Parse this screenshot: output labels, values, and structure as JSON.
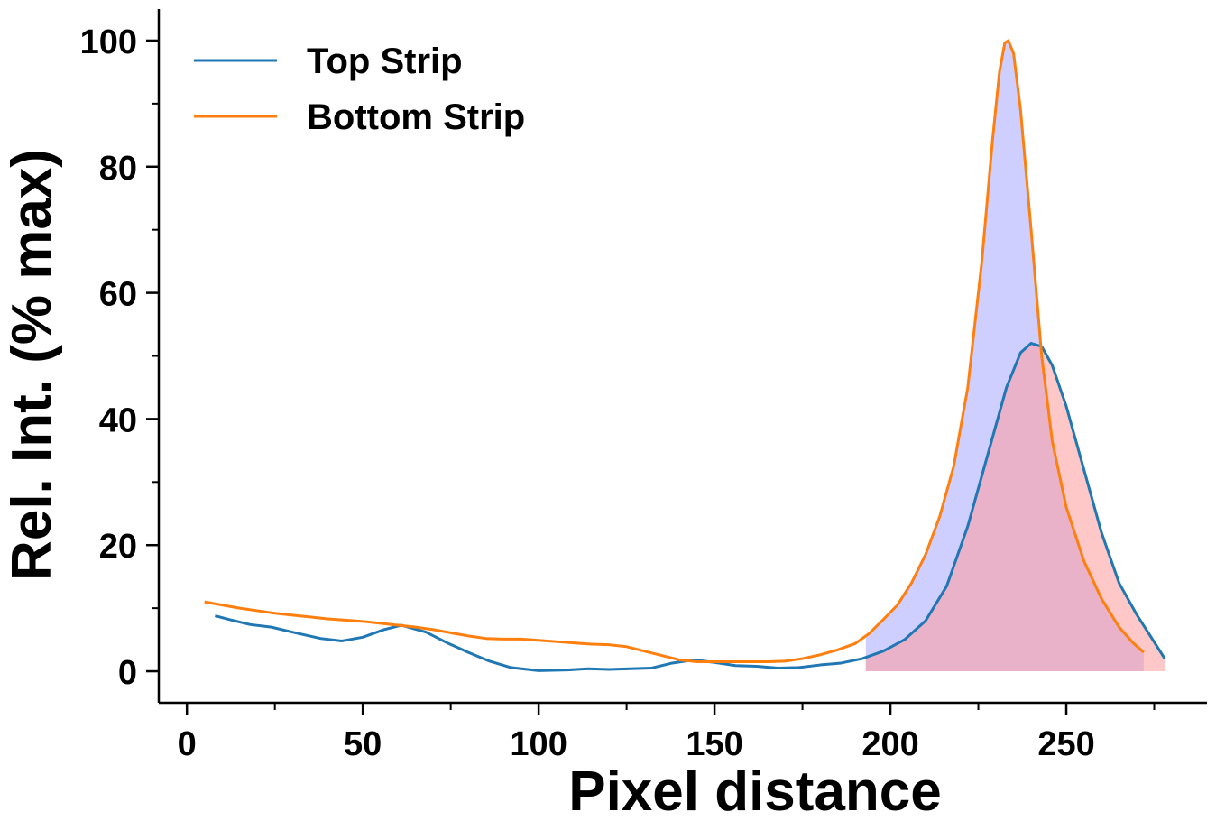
{
  "chart_data": {
    "type": "line",
    "xlabel": "Pixel distance",
    "ylabel": "Rel. Int. (% max)",
    "xlim": [
      -8,
      290
    ],
    "ylim": [
      -5,
      105
    ],
    "x_ticks": [
      0,
      50,
      100,
      150,
      200,
      250
    ],
    "y_ticks": [
      0,
      20,
      40,
      60,
      80,
      100
    ],
    "x_minor_step": 25,
    "y_minor_step": 10,
    "grid": false,
    "legend": "upper-left",
    "series": [
      {
        "name": "Top Strip",
        "color": "#1f77b4",
        "points": [
          [
            8,
            8.8
          ],
          [
            12,
            8.2
          ],
          [
            18,
            7.4
          ],
          [
            24,
            7.0
          ],
          [
            30,
            6.2
          ],
          [
            38,
            5.2
          ],
          [
            44,
            4.8
          ],
          [
            50,
            5.4
          ],
          [
            56,
            6.6
          ],
          [
            61,
            7.3
          ],
          [
            68,
            6.2
          ],
          [
            74,
            4.5
          ],
          [
            80,
            3.0
          ],
          [
            86,
            1.6
          ],
          [
            92,
            0.6
          ],
          [
            100,
            0.1
          ],
          [
            108,
            0.2
          ],
          [
            114,
            0.4
          ],
          [
            120,
            0.3
          ],
          [
            126,
            0.4
          ],
          [
            132,
            0.5
          ],
          [
            138,
            1.3
          ],
          [
            144,
            1.8
          ],
          [
            150,
            1.4
          ],
          [
            156,
            0.9
          ],
          [
            162,
            0.8
          ],
          [
            168,
            0.5
          ],
          [
            174,
            0.6
          ],
          [
            180,
            1.0
          ],
          [
            186,
            1.3
          ],
          [
            192,
            2.0
          ],
          [
            198,
            3.2
          ],
          [
            204,
            5.0
          ],
          [
            210,
            8.0
          ],
          [
            216,
            13.5
          ],
          [
            222,
            23.0
          ],
          [
            228,
            35.0
          ],
          [
            233,
            45.0
          ],
          [
            237,
            50.5
          ],
          [
            240,
            52.0
          ],
          [
            243,
            51.5
          ],
          [
            246,
            48.5
          ],
          [
            250,
            42.0
          ],
          [
            255,
            32.0
          ],
          [
            260,
            22.0
          ],
          [
            265,
            14.0
          ],
          [
            270,
            9.0
          ],
          [
            274,
            5.5
          ],
          [
            278,
            2.0
          ]
        ],
        "fill": {
          "from": 193,
          "to": 278,
          "color": "#ff9a9a"
        }
      },
      {
        "name": "Bottom Strip",
        "color": "#ff7f0e",
        "points": [
          [
            5,
            11.0
          ],
          [
            10,
            10.5
          ],
          [
            15,
            10.0
          ],
          [
            20,
            9.6
          ],
          [
            25,
            9.2
          ],
          [
            30,
            8.9
          ],
          [
            35,
            8.6
          ],
          [
            40,
            8.3
          ],
          [
            45,
            8.1
          ],
          [
            50,
            7.9
          ],
          [
            55,
            7.6
          ],
          [
            60,
            7.3
          ],
          [
            65,
            7.0
          ],
          [
            70,
            6.6
          ],
          [
            75,
            6.1
          ],
          [
            80,
            5.6
          ],
          [
            85,
            5.2
          ],
          [
            90,
            5.1
          ],
          [
            95,
            5.1
          ],
          [
            100,
            4.9
          ],
          [
            105,
            4.7
          ],
          [
            110,
            4.5
          ],
          [
            115,
            4.3
          ],
          [
            120,
            4.2
          ],
          [
            125,
            3.9
          ],
          [
            130,
            3.2
          ],
          [
            135,
            2.5
          ],
          [
            140,
            1.8
          ],
          [
            145,
            1.5
          ],
          [
            150,
            1.5
          ],
          [
            155,
            1.5
          ],
          [
            160,
            1.5
          ],
          [
            165,
            1.5
          ],
          [
            170,
            1.6
          ],
          [
            175,
            2.0
          ],
          [
            180,
            2.6
          ],
          [
            185,
            3.4
          ],
          [
            190,
            4.4
          ],
          [
            194,
            6.0
          ],
          [
            198,
            8.2
          ],
          [
            202,
            10.5
          ],
          [
            206,
            14.0
          ],
          [
            210,
            18.5
          ],
          [
            214,
            24.5
          ],
          [
            218,
            32.5
          ],
          [
            222,
            45.0
          ],
          [
            226,
            65.0
          ],
          [
            229,
            84.0
          ],
          [
            231,
            95.0
          ],
          [
            232.5,
            99.6
          ],
          [
            233.5,
            100.0
          ],
          [
            235,
            98.0
          ],
          [
            237,
            89.0
          ],
          [
            240,
            70.0
          ],
          [
            243,
            50.0
          ],
          [
            246,
            36.5
          ],
          [
            250,
            26.0
          ],
          [
            255,
            17.5
          ],
          [
            260,
            11.5
          ],
          [
            265,
            7.0
          ],
          [
            269,
            4.5
          ],
          [
            272,
            3.0
          ]
        ],
        "fill": {
          "from": 193,
          "to": 272,
          "color": "#a6a6ff"
        }
      }
    ]
  }
}
